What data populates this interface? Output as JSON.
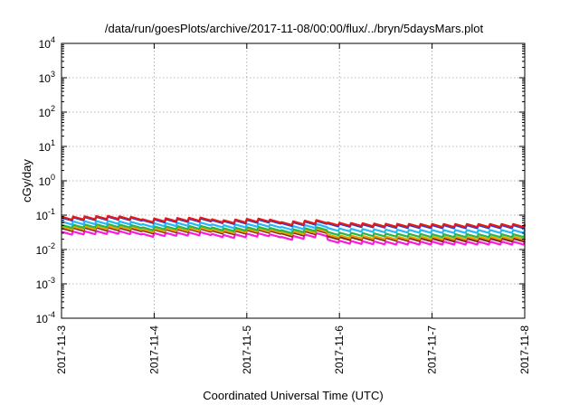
{
  "chart_data": {
    "type": "line",
    "title": "/data/run/goesPlots/archive/2017-11-08/00:00/flux/../bryn/5daysMars.plot",
    "xlabel": "Coordinated Universal Time (UTC)",
    "ylabel": "cGy/day",
    "yscale": "log",
    "ylim": [
      0.0001,
      10000
    ],
    "xlim": [
      0,
      5
    ],
    "grid": true,
    "x_ticks": [
      {
        "value": 0,
        "label": "2017-11-3"
      },
      {
        "value": 1,
        "label": "2017-11-4"
      },
      {
        "value": 2,
        "label": "2017-11-5"
      },
      {
        "value": 3,
        "label": "2017-11-6"
      },
      {
        "value": 4,
        "label": "2017-11-7"
      },
      {
        "value": 5,
        "label": "2017-11-8"
      }
    ],
    "y_ticks": [
      {
        "value": 0.0001,
        "base": "10",
        "exp": "-4"
      },
      {
        "value": 0.001,
        "base": "10",
        "exp": "-3"
      },
      {
        "value": 0.01,
        "base": "10",
        "exp": "-2"
      },
      {
        "value": 0.1,
        "base": "10",
        "exp": "-1"
      },
      {
        "value": 1,
        "base": "10",
        "exp": "0"
      },
      {
        "value": 10,
        "base": "10",
        "exp": "1"
      },
      {
        "value": 100,
        "base": "10",
        "exp": "2"
      },
      {
        "value": 1000,
        "base": "10",
        "exp": "3"
      },
      {
        "value": 10000,
        "base": "10",
        "exp": "4"
      }
    ],
    "sawtooth_period_days": 0.125,
    "series": [
      {
        "color": "#e41a1c",
        "peak": [
          [
            0,
            0.09
          ],
          [
            0.5,
            0.095
          ],
          [
            0.8,
            0.088
          ],
          [
            0.9,
            0.072
          ],
          [
            1.0,
            0.08
          ],
          [
            1.5,
            0.085
          ],
          [
            1.7,
            0.07
          ],
          [
            2.0,
            0.078
          ],
          [
            2.2,
            0.08
          ],
          [
            2.35,
            0.062
          ],
          [
            2.5,
            0.066
          ],
          [
            2.75,
            0.072
          ],
          [
            2.8,
            0.062
          ],
          [
            3.0,
            0.06
          ],
          [
            3.5,
            0.056
          ],
          [
            4.0,
            0.055
          ],
          [
            4.5,
            0.055
          ],
          [
            5.0,
            0.055
          ]
        ]
      },
      {
        "color": "#1f3fd1",
        "peak": [
          [
            0,
            0.085
          ],
          [
            0.5,
            0.09
          ],
          [
            0.8,
            0.083
          ],
          [
            0.9,
            0.068
          ],
          [
            1.0,
            0.075
          ],
          [
            1.5,
            0.08
          ],
          [
            1.7,
            0.066
          ],
          [
            2.0,
            0.073
          ],
          [
            2.2,
            0.075
          ],
          [
            2.35,
            0.058
          ],
          [
            2.5,
            0.062
          ],
          [
            2.75,
            0.068
          ],
          [
            2.8,
            0.058
          ],
          [
            3.0,
            0.056
          ],
          [
            3.5,
            0.052
          ],
          [
            4.0,
            0.051
          ],
          [
            4.5,
            0.051
          ],
          [
            5.0,
            0.051
          ]
        ]
      },
      {
        "color": "#29b6f6",
        "peak": [
          [
            0,
            0.065
          ],
          [
            0.5,
            0.068
          ],
          [
            0.8,
            0.063
          ],
          [
            0.9,
            0.052
          ],
          [
            1.0,
            0.058
          ],
          [
            1.5,
            0.061
          ],
          [
            1.7,
            0.05
          ],
          [
            2.0,
            0.056
          ],
          [
            2.2,
            0.057
          ],
          [
            2.35,
            0.045
          ],
          [
            2.5,
            0.048
          ],
          [
            2.75,
            0.055
          ],
          [
            2.8,
            0.043
          ],
          [
            3.0,
            0.041
          ],
          [
            3.5,
            0.038
          ],
          [
            4.0,
            0.037
          ],
          [
            4.5,
            0.037
          ],
          [
            5.0,
            0.037
          ]
        ]
      },
      {
        "color": "#2ab54a",
        "peak": [
          [
            0,
            0.052
          ],
          [
            0.5,
            0.055
          ],
          [
            0.8,
            0.051
          ],
          [
            0.9,
            0.042
          ],
          [
            1.0,
            0.047
          ],
          [
            1.5,
            0.049
          ],
          [
            1.7,
            0.041
          ],
          [
            2.0,
            0.045
          ],
          [
            2.2,
            0.046
          ],
          [
            2.35,
            0.036
          ],
          [
            2.5,
            0.039
          ],
          [
            2.75,
            0.045
          ],
          [
            2.8,
            0.033
          ],
          [
            3.0,
            0.031
          ],
          [
            3.5,
            0.029
          ],
          [
            4.0,
            0.028
          ],
          [
            4.5,
            0.028
          ],
          [
            5.0,
            0.028
          ]
        ]
      },
      {
        "color": "#e8a100",
        "peak": [
          [
            0,
            0.046
          ],
          [
            0.5,
            0.048
          ],
          [
            0.8,
            0.045
          ],
          [
            0.9,
            0.037
          ],
          [
            1.0,
            0.041
          ],
          [
            1.5,
            0.043
          ],
          [
            1.7,
            0.036
          ],
          [
            2.0,
            0.04
          ],
          [
            2.2,
            0.041
          ],
          [
            2.35,
            0.032
          ],
          [
            2.5,
            0.034
          ],
          [
            2.75,
            0.04
          ],
          [
            2.8,
            0.028
          ],
          [
            3.0,
            0.026
          ],
          [
            3.5,
            0.024
          ],
          [
            4.0,
            0.024
          ],
          [
            4.5,
            0.024
          ],
          [
            5.0,
            0.024
          ]
        ]
      },
      {
        "color": "#7a2e18",
        "peak": [
          [
            0,
            0.042
          ],
          [
            0.5,
            0.044
          ],
          [
            0.8,
            0.041
          ],
          [
            0.9,
            0.034
          ],
          [
            1.0,
            0.038
          ],
          [
            1.5,
            0.04
          ],
          [
            1.7,
            0.033
          ],
          [
            2.0,
            0.037
          ],
          [
            2.2,
            0.038
          ],
          [
            2.35,
            0.029
          ],
          [
            2.5,
            0.031
          ],
          [
            2.75,
            0.037
          ],
          [
            2.8,
            0.025
          ],
          [
            3.0,
            0.023
          ],
          [
            3.5,
            0.022
          ],
          [
            4.0,
            0.021
          ],
          [
            4.5,
            0.021
          ],
          [
            5.0,
            0.021
          ]
        ]
      },
      {
        "color": "#ff1ad9",
        "peak": [
          [
            0,
            0.033
          ],
          [
            0.5,
            0.035
          ],
          [
            0.8,
            0.033
          ],
          [
            0.9,
            0.027
          ],
          [
            1.0,
            0.03
          ],
          [
            1.5,
            0.032
          ],
          [
            1.7,
            0.026
          ],
          [
            2.0,
            0.029
          ],
          [
            2.2,
            0.03
          ],
          [
            2.35,
            0.023
          ],
          [
            2.5,
            0.025
          ],
          [
            2.75,
            0.03
          ],
          [
            2.8,
            0.02
          ],
          [
            3.0,
            0.018
          ],
          [
            3.5,
            0.017
          ],
          [
            4.0,
            0.017
          ],
          [
            4.5,
            0.017
          ],
          [
            5.0,
            0.017
          ]
        ]
      }
    ]
  }
}
